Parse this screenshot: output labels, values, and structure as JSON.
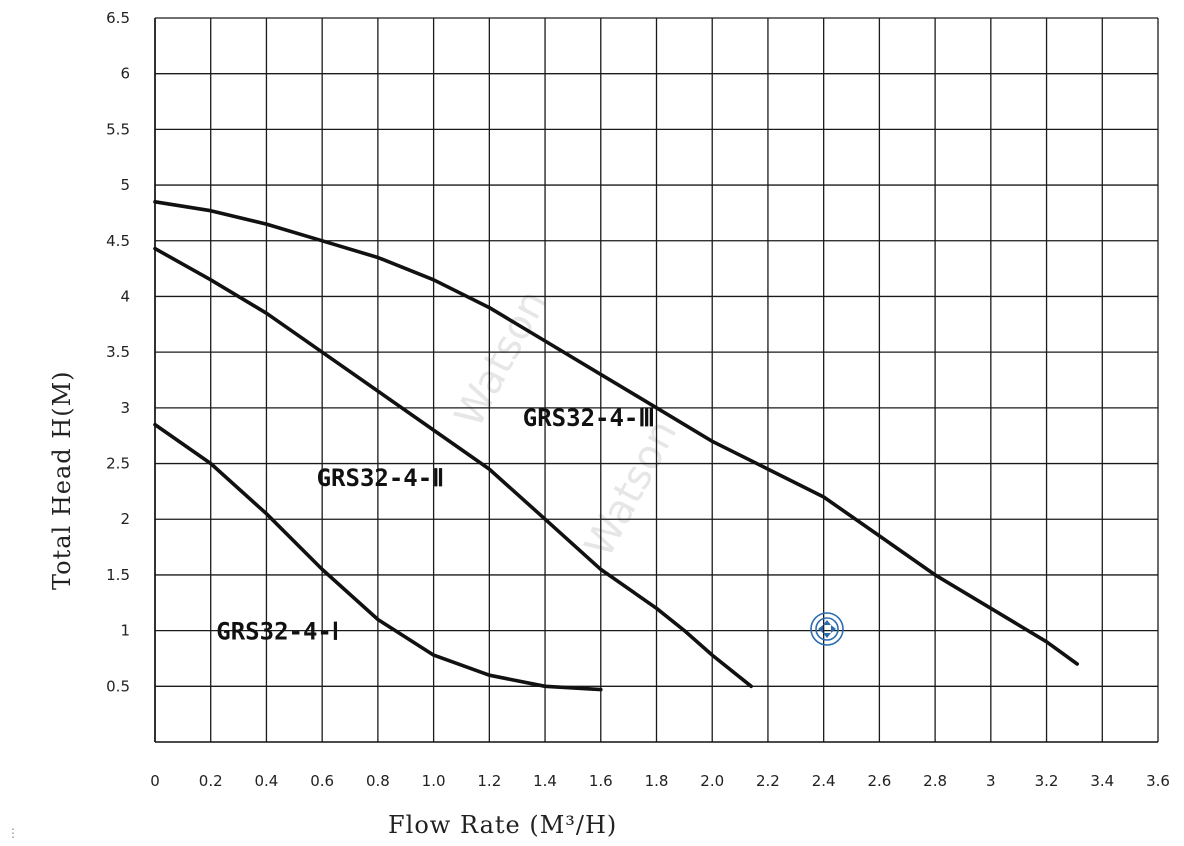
{
  "chart_data": {
    "type": "line",
    "xlabel": "Flow Rate (M³/H)",
    "ylabel": "Total Head H(M)",
    "xlim": [
      0,
      3.6
    ],
    "ylim": [
      0,
      6.5
    ],
    "grid": true,
    "x_ticks": [
      {
        "value": 0,
        "label": "0"
      },
      {
        "value": 0.2,
        "label": "0.2"
      },
      {
        "value": 0.4,
        "label": "0.4"
      },
      {
        "value": 0.6,
        "label": "0.6"
      },
      {
        "value": 0.8,
        "label": "0.8"
      },
      {
        "value": 1.0,
        "label": "1.0"
      },
      {
        "value": 1.2,
        "label": "1.2"
      },
      {
        "value": 1.4,
        "label": "1.4"
      },
      {
        "value": 1.6,
        "label": "1.6"
      },
      {
        "value": 1.8,
        "label": "1.8"
      },
      {
        "value": 2.0,
        "label": "2.0"
      },
      {
        "value": 2.2,
        "label": "2.2"
      },
      {
        "value": 2.4,
        "label": "2.4"
      },
      {
        "value": 2.6,
        "label": "2.6"
      },
      {
        "value": 2.8,
        "label": "2.8"
      },
      {
        "value": 3.0,
        "label": "3"
      },
      {
        "value": 3.2,
        "label": "3.2"
      },
      {
        "value": 3.4,
        "label": "3.4"
      },
      {
        "value": 3.6,
        "label": "3.6"
      }
    ],
    "y_ticks": [
      {
        "value": 0.5,
        "label": "0.5"
      },
      {
        "value": 1,
        "label": "1"
      },
      {
        "value": 1.5,
        "label": "1.5"
      },
      {
        "value": 2,
        "label": "2"
      },
      {
        "value": 2.5,
        "label": "2.5"
      },
      {
        "value": 3,
        "label": "3"
      },
      {
        "value": 3.5,
        "label": "3.5"
      },
      {
        "value": 4,
        "label": "4"
      },
      {
        "value": 4.5,
        "label": "4.5"
      },
      {
        "value": 5,
        "label": "5"
      },
      {
        "value": 5.5,
        "label": "5.5"
      },
      {
        "value": 6,
        "label": "6"
      },
      {
        "value": 6.5,
        "label": "6.5"
      }
    ],
    "series": [
      {
        "name": "GRS32-4-Ⅰ",
        "label_at": [
          0.22,
          1.0
        ],
        "points": [
          [
            0,
            2.85
          ],
          [
            0.2,
            2.5
          ],
          [
            0.4,
            2.05
          ],
          [
            0.6,
            1.55
          ],
          [
            0.8,
            1.1
          ],
          [
            1.0,
            0.78
          ],
          [
            1.2,
            0.6
          ],
          [
            1.4,
            0.5
          ],
          [
            1.6,
            0.47
          ]
        ]
      },
      {
        "name": "GRS32-4-Ⅱ",
        "label_at": [
          0.58,
          2.38
        ],
        "points": [
          [
            0,
            4.43
          ],
          [
            0.2,
            4.15
          ],
          [
            0.4,
            3.85
          ],
          [
            0.6,
            3.5
          ],
          [
            0.8,
            3.15
          ],
          [
            1.0,
            2.8
          ],
          [
            1.2,
            2.45
          ],
          [
            1.4,
            2.0
          ],
          [
            1.6,
            1.55
          ],
          [
            1.8,
            1.2
          ],
          [
            1.9,
            1.0
          ],
          [
            2.0,
            0.78
          ],
          [
            2.14,
            0.5
          ]
        ]
      },
      {
        "name": "GRS32-4-Ⅲ",
        "label_at": [
          1.32,
          2.92
        ],
        "points": [
          [
            0,
            4.85
          ],
          [
            0.2,
            4.77
          ],
          [
            0.4,
            4.65
          ],
          [
            0.6,
            4.5
          ],
          [
            0.8,
            4.35
          ],
          [
            1.0,
            4.15
          ],
          [
            1.2,
            3.9
          ],
          [
            1.4,
            3.6
          ],
          [
            1.6,
            3.3
          ],
          [
            1.8,
            3.0
          ],
          [
            2.0,
            2.7
          ],
          [
            2.2,
            2.45
          ],
          [
            2.4,
            2.2
          ],
          [
            2.6,
            1.85
          ],
          [
            2.8,
            1.5
          ],
          [
            3.0,
            1.2
          ],
          [
            3.2,
            0.9
          ],
          [
            3.31,
            0.7
          ]
        ]
      }
    ],
    "watermark": "Watson"
  },
  "icons": {
    "cursor": "move-cursor-icon",
    "corner": "drag-handle-icon",
    "cursor_color": "#2b6cb0"
  }
}
